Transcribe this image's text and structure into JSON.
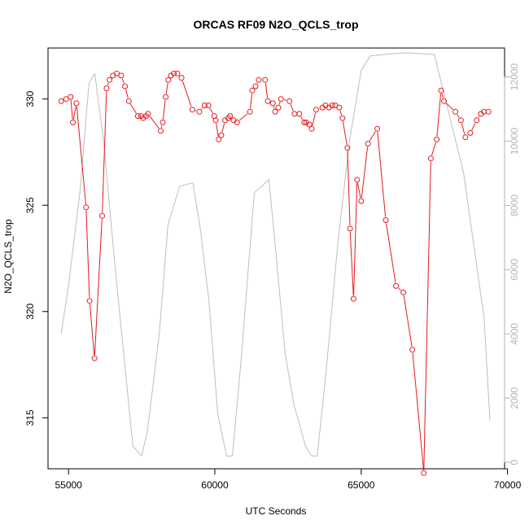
{
  "chart_data": {
    "type": "line",
    "title": "ORCAS RF09 N2O_QCLS_trop",
    "xlabel": "UTC Seconds",
    "ylabel": "N2O_QCLS_trop",
    "xlim": [
      54300,
      69900
    ],
    "ylim": [
      312.6,
      332.4
    ],
    "y2lim": [
      -200,
      12900
    ],
    "x_ticks": [
      55000,
      60000,
      65000,
      70000
    ],
    "y_ticks": [
      315,
      320,
      325,
      330
    ],
    "y2_ticks": [
      0,
      2000,
      4000,
      6000,
      8000,
      10000,
      12000
    ],
    "grid": false,
    "colors": {
      "n2o": "#e41a1c",
      "altitude": "#bebebe",
      "axis": "#000000",
      "axis_right": "#b3b3b3"
    },
    "series": [
      {
        "axis": "left",
        "style": "line+points",
        "x": [
          54750,
          54920,
          55070,
          55150,
          55270,
          55600,
          55720,
          55890,
          56150,
          56300,
          56400,
          56520,
          56650,
          56800,
          56930,
          57060,
          57370,
          57480,
          57550,
          57650,
          57720,
          58150,
          58220,
          58320,
          58410,
          58500,
          58600,
          58720,
          58860,
          59230,
          59470,
          59650,
          59780,
          59980,
          60030,
          60130,
          60220,
          60350,
          60460,
          60520,
          60640,
          60760,
          61200,
          61280,
          61390,
          61500,
          61720,
          61810,
          61980,
          62060,
          62170,
          62260,
          62550,
          62720,
          62890,
          63050,
          63120,
          63230,
          63310,
          63460,
          63680,
          63780,
          63900,
          64010,
          64110,
          64250,
          64360,
          64530,
          64620,
          64740,
          64860,
          65000,
          65230,
          65550,
          65840,
          66190,
          66440,
          66750,
          67140,
          67380,
          67580,
          67730,
          67830,
          68220,
          68410,
          68560,
          68730,
          68950,
          69090,
          69190,
          69350
        ],
        "y": [
          329.9,
          330.0,
          330.1,
          328.9,
          329.8,
          324.9,
          320.5,
          317.8,
          324.5,
          330.5,
          330.9,
          331.1,
          331.2,
          331.1,
          330.6,
          329.9,
          329.2,
          329.2,
          329.1,
          329.2,
          329.3,
          328.5,
          328.9,
          330.1,
          330.9,
          331.1,
          331.2,
          331.2,
          331.0,
          329.5,
          329.4,
          329.7,
          329.7,
          329.2,
          329.0,
          328.1,
          328.3,
          329.0,
          329.1,
          329.2,
          329.0,
          328.9,
          329.4,
          330.4,
          330.6,
          330.9,
          330.9,
          329.9,
          329.8,
          329.4,
          329.6,
          330.0,
          329.9,
          329.3,
          329.3,
          328.9,
          328.9,
          328.8,
          328.6,
          329.5,
          329.6,
          329.7,
          329.6,
          329.7,
          329.7,
          329.6,
          329.1,
          327.7,
          323.9,
          320.6,
          326.2,
          325.2,
          327.9,
          328.6,
          324.3,
          321.2,
          320.9,
          318.2,
          312.4,
          327.2,
          328.1,
          330.4,
          329.9,
          329.4,
          329.0,
          328.2,
          328.4,
          329.0,
          329.3,
          329.4,
          329.4
        ]
      },
      {
        "axis": "right",
        "style": "line",
        "x": [
          54750,
          55000,
          55400,
          55700,
          55900,
          56200,
          56600,
          57200,
          57500,
          57700,
          58100,
          58400,
          58800,
          59250,
          59500,
          59800,
          60100,
          60400,
          60600,
          60900,
          61350,
          61600,
          61850,
          62100,
          62400,
          62700,
          63100,
          63300,
          63500,
          63800,
          64200,
          64600,
          65000,
          65300,
          65800,
          66500,
          67500,
          68500,
          69200,
          69400
        ],
        "y": [
          4000,
          5500,
          8500,
          11800,
          12100,
          10000,
          6000,
          500,
          200,
          1000,
          4000,
          7400,
          8600,
          8700,
          7300,
          5000,
          1500,
          200,
          200,
          3200,
          8400,
          8600,
          8800,
          6400,
          3400,
          1800,
          500,
          200,
          200,
          2800,
          6800,
          10000,
          12200,
          12650,
          12700,
          12750,
          12700,
          9000,
          4500,
          1300
        ]
      }
    ]
  }
}
